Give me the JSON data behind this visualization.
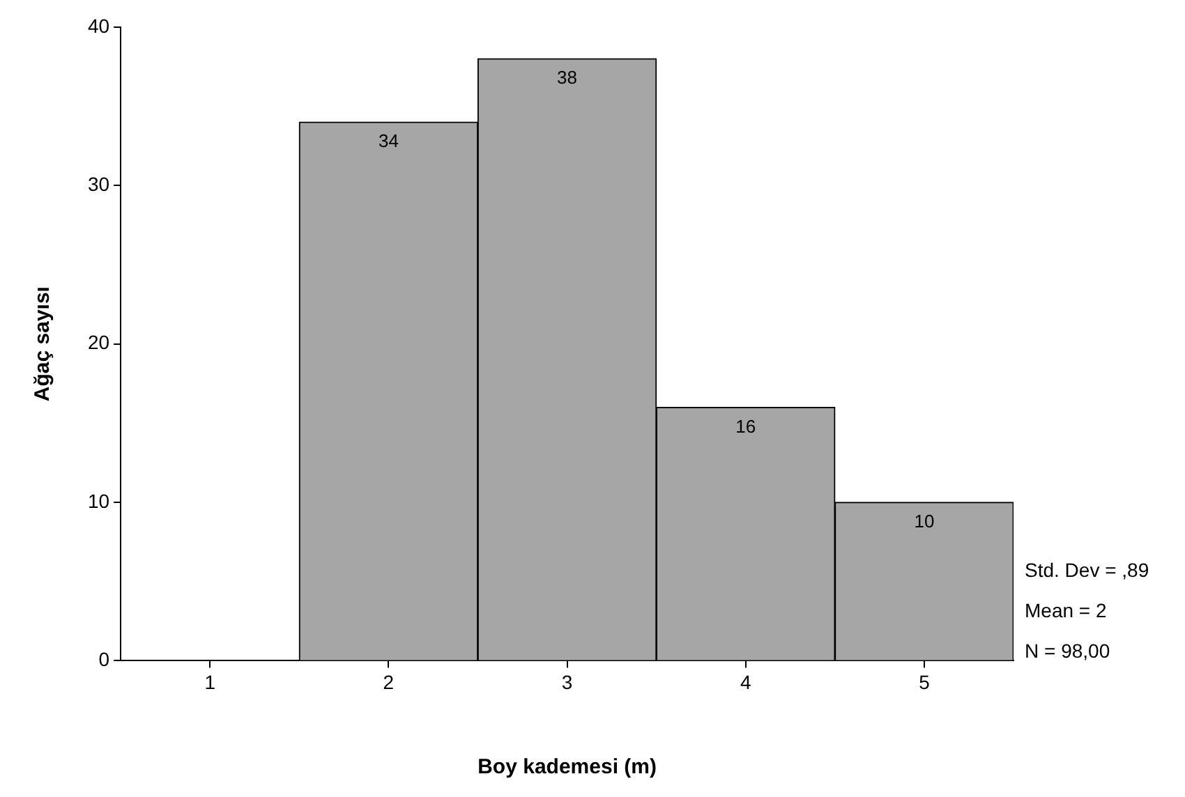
{
  "chart_data": {
    "type": "histogram",
    "xlabel": "Boy kademesi (m)",
    "ylabel": "Ağaç sayısı",
    "bins": [
      0.5,
      1.5,
      2.5,
      3.5,
      4.5,
      5.5
    ],
    "values": [
      0,
      34,
      38,
      16,
      10
    ],
    "value_labels": [
      null,
      "34",
      "38",
      "16",
      "10"
    ],
    "color": "#a6a6a6",
    "xlim": [
      0.5,
      5.5
    ],
    "xticks": [
      1,
      2,
      3,
      4,
      5
    ],
    "ylim": [
      0,
      40
    ],
    "yticks": [
      0,
      10,
      20,
      30,
      40
    ],
    "grid": false,
    "legend": false,
    "annotations": [
      "Std. Dev = ,89",
      "Mean = 2",
      "N = 98,00"
    ]
  }
}
